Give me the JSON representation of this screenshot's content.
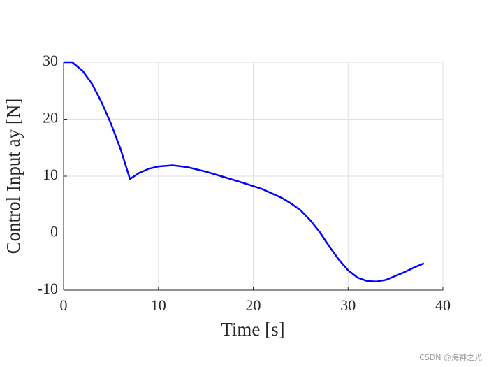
{
  "chart_data": {
    "type": "line",
    "xlabel": "Time [s]",
    "ylabel": "Control Input ay [N]",
    "x": [
      0,
      0.9,
      2,
      3,
      4,
      5,
      6,
      7,
      8,
      9,
      10,
      11.5,
      13,
      15,
      17,
      19,
      21,
      23,
      24,
      25,
      26,
      27,
      28,
      29,
      30,
      31,
      32,
      33,
      34,
      35,
      36,
      37,
      38
    ],
    "series": [
      {
        "color": "#0000ff",
        "values": [
          30,
          30,
          28.5,
          26.2,
          23,
          19.2,
          14.8,
          9.5,
          10.6,
          11.3,
          11.7,
          11.9,
          11.6,
          10.8,
          9.8,
          8.8,
          7.7,
          6.2,
          5.2,
          4,
          2.3,
          0.2,
          -2.3,
          -4.6,
          -6.5,
          -7.8,
          -8.4,
          -8.5,
          -8.2,
          -7.5,
          -6.8,
          -6,
          -5.3
        ]
      }
    ],
    "xlim": [
      0,
      40
    ],
    "ylim": [
      -10,
      30
    ],
    "xticks": [
      0,
      10,
      20,
      30,
      40
    ],
    "yticks": [
      -10,
      0,
      10,
      20,
      30
    ],
    "grid": true
  },
  "watermark": "CSDN @海神之光"
}
